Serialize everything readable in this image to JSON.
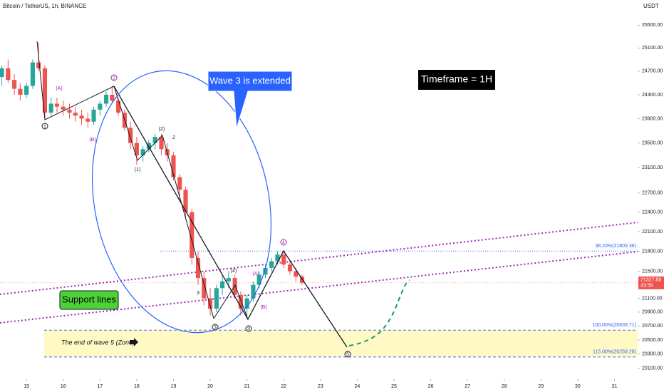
{
  "header": "Bitcoin / TetherUS, 1h, BINANCE",
  "currency": "USDT",
  "annotations": {
    "wave3": "Wave 3 is extended",
    "timeframe": "Timeframe = 1H",
    "support": "Support lines",
    "zone": "The end of wave 5 (Zone)"
  },
  "wave_labels": [
    "(A)",
    "(B)",
    "(1)",
    "(2)",
    "2",
    "3",
    "(4)",
    "(A)",
    "(B)",
    "1",
    "2",
    "3",
    "3",
    "4",
    "5"
  ],
  "fib_levels": [
    {
      "value": 21803.36,
      "label": "38.20%(21803.36)"
    },
    {
      "value": 20639.71,
      "label": "100.00%(20639.71)"
    },
    {
      "value": 20259.28,
      "label": "115.00%(20259.28)"
    }
  ],
  "last_price": 21327.89,
  "countdown": "43:58",
  "chart_data": {
    "type": "candlestick",
    "log_scale": true,
    "up_color": "#26a69a",
    "down_color": "#ef5350",
    "x": [
      14.33,
      14.5,
      14.67,
      14.83,
      15.0,
      15.17,
      15.33,
      15.5,
      15.67,
      15.83,
      16.0,
      16.17,
      16.33,
      16.5,
      16.67,
      16.83,
      17.0,
      17.17,
      17.33,
      17.5,
      17.67,
      17.83,
      18.0,
      18.17,
      18.33,
      18.5,
      18.67,
      18.83,
      19.0,
      19.17,
      19.33,
      19.5,
      19.67,
      19.83,
      20.0,
      20.17,
      20.33,
      20.5,
      20.67,
      20.83,
      21.0,
      21.17,
      21.33,
      21.5,
      21.67,
      21.83,
      22.0,
      22.17,
      22.33,
      22.5
    ],
    "open": [
      24600,
      24750,
      24550,
      24400,
      24300,
      24450,
      24850,
      24750,
      24000,
      24150,
      24100,
      24050,
      24000,
      23950,
      23900,
      23850,
      24050,
      24150,
      24300,
      24200,
      24000,
      23750,
      23500,
      23300,
      23400,
      23500,
      23600,
      23400,
      23300,
      22950,
      22750,
      22400,
      21700,
      21400,
      21100,
      20950,
      21250,
      21350,
      21400,
      21150,
      20950,
      21100,
      21300,
      21450,
      21550,
      21650,
      21750,
      21600,
      21500,
      21420
    ],
    "high": [
      24800,
      24900,
      24650,
      24500,
      24500,
      24900,
      25200,
      24800,
      24250,
      24250,
      24200,
      24150,
      24100,
      24050,
      24000,
      24100,
      24200,
      24350,
      24450,
      24250,
      24050,
      23850,
      23600,
      23450,
      23550,
      23650,
      23650,
      23500,
      23350,
      23000,
      22800,
      22450,
      21800,
      21500,
      21250,
      21300,
      21450,
      21500,
      21450,
      21200,
      21150,
      21350,
      21500,
      21600,
      21700,
      21800,
      21780,
      21650,
      21550,
      21450
    ],
    "low": [
      24450,
      24500,
      24300,
      24200,
      24250,
      24400,
      24700,
      23900,
      23950,
      24000,
      23950,
      23900,
      23850,
      23800,
      23750,
      23800,
      23950,
      24100,
      24150,
      23950,
      23700,
      23400,
      23150,
      23200,
      23350,
      23400,
      23300,
      23200,
      22900,
      22600,
      22300,
      21600,
      21300,
      21000,
      20850,
      20900,
      21150,
      21250,
      21100,
      20850,
      20850,
      21050,
      21250,
      21400,
      21500,
      21600,
      21550,
      21450,
      21350,
      21300
    ],
    "close": [
      24750,
      24550,
      24400,
      24300,
      24450,
      24850,
      24750,
      24000,
      24150,
      24100,
      24050,
      24000,
      23950,
      23900,
      23850,
      24050,
      24150,
      24300,
      24200,
      24000,
      23750,
      23500,
      23300,
      23400,
      23500,
      23600,
      23400,
      23300,
      22950,
      22750,
      22400,
      21700,
      21400,
      21100,
      20950,
      21250,
      21350,
      21400,
      21150,
      20950,
      21100,
      21300,
      21450,
      21550,
      21650,
      21750,
      21600,
      21500,
      21420,
      21330
    ],
    "xlim": [
      14.28,
      31.63
    ],
    "xticks": [
      15,
      16,
      17,
      18,
      19,
      20,
      21,
      22,
      23,
      24,
      25,
      26,
      27,
      28,
      29,
      30,
      31
    ],
    "ylim": [
      19950,
      25950
    ],
    "yticks": [
      {
        "value": 25500,
        "label": "25500.00"
      },
      {
        "value": 25100,
        "label": "25100.00"
      },
      {
        "value": 24700,
        "label": "24700.00"
      },
      {
        "value": 24300,
        "label": "24300.00"
      },
      {
        "value": 23900,
        "label": "23900.00"
      },
      {
        "value": 23500,
        "label": "23500.00"
      },
      {
        "value": 23100,
        "label": "23100.00"
      },
      {
        "value": 22700,
        "label": "22700.00"
      },
      {
        "value": 22400,
        "label": "22400.00"
      },
      {
        "value": 22100,
        "label": "22100.00"
      },
      {
        "value": 21800,
        "label": "21800.00"
      },
      {
        "value": 21500,
        "label": "21500.00"
      },
      {
        "value": 21100,
        "label": "21100.00"
      },
      {
        "value": 20900,
        "label": "20900.00"
      },
      {
        "value": 20700,
        "label": "20700.00"
      },
      {
        "value": 20500,
        "label": "20500.00"
      },
      {
        "value": 20300,
        "label": "20300.00"
      },
      {
        "value": 20100,
        "label": "20100.00"
      }
    ]
  }
}
